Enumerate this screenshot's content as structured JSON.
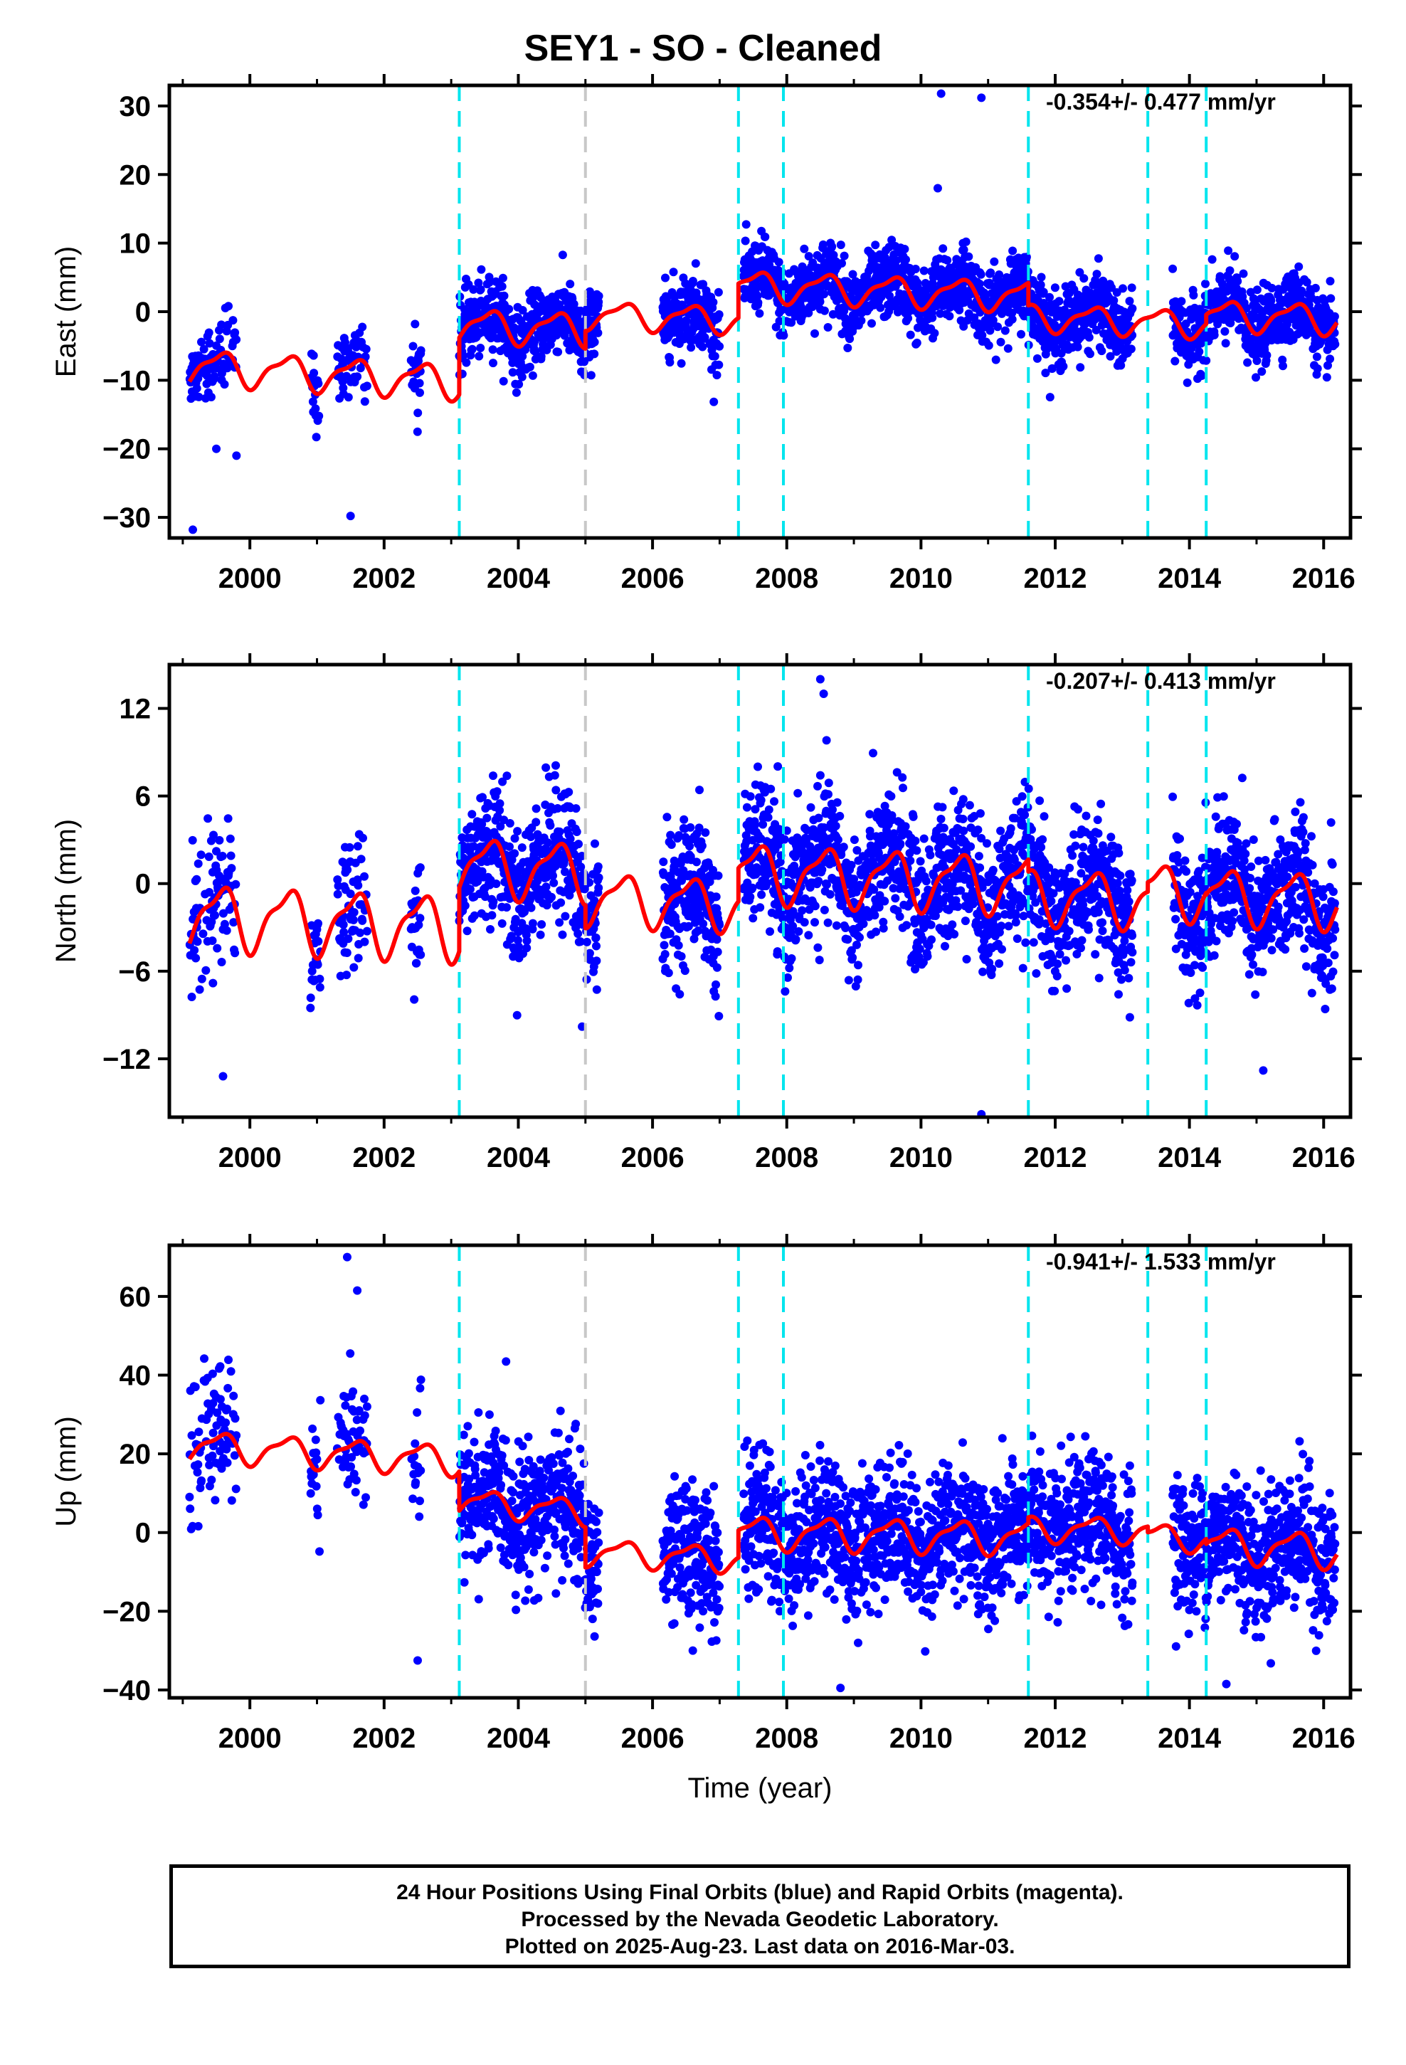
{
  "title": "SEY1  - SO - Cleaned",
  "footer": {
    "line1": "24 Hour Positions Using Final Orbits (blue) and Rapid Orbits (magenta).",
    "line2": "Processed by the Nevada Geodetic Laboratory.",
    "line3": "Plotted on 2025-Aug-23. Last data on 2016-Mar-03."
  },
  "colors": {
    "points": "#0000ff",
    "model": "#ff0000",
    "step_equipment": "#00e5ee",
    "step_other": "#c8c8c8"
  },
  "chart_data": [
    {
      "type": "scatter",
      "ylabel": "East (mm)",
      "xlabel": "",
      "xlim": [
        1998.8,
        2016.4
      ],
      "ylim": [
        -33,
        33
      ],
      "yticks": [
        -30,
        -20,
        -10,
        0,
        10,
        20,
        30
      ],
      "xticks": [
        2000,
        2002,
        2004,
        2006,
        2008,
        2010,
        2012,
        2014,
        2016
      ],
      "rate": "-0.354+/- 0.477 mm/yr",
      "steps_equipment": [
        2003.12,
        2007.28,
        2007.95,
        2011.6,
        2013.38,
        2014.25
      ],
      "steps_other": [
        2005.0
      ],
      "model": [
        {
          "segment": [
            1999.1,
            2003.12
          ],
          "offset": -8,
          "amplitude": 2.3,
          "trend": -0.55
        },
        {
          "segment": [
            2003.12,
            2005.0
          ],
          "offset": -2,
          "amplitude": 2.2,
          "trend": -0.3
        },
        {
          "segment": [
            2005.0,
            2007.28
          ],
          "offset": -0.5,
          "amplitude": 1.8,
          "trend": -0.3
        },
        {
          "segment": [
            2007.28,
            2011.6
          ],
          "offset": 3.8,
          "amplitude": 2.0,
          "trend": -0.35
        },
        {
          "segment": [
            2011.6,
            2013.38
          ],
          "offset": -0.8,
          "amplitude": 1.8,
          "trend": -0.4
        },
        {
          "segment": [
            2013.38,
            2014.25
          ],
          "offset": -1.5,
          "amplitude": 1.8,
          "trend": -0.4
        },
        {
          "segment": [
            2014.25,
            2016.2
          ],
          "offset": -0.5,
          "amplitude": 2.0,
          "trend": -0.3
        }
      ],
      "scatter_sd": 2.6,
      "outliers": [
        [
          1999.15,
          -31.8
        ],
        [
          2001.5,
          -29.8
        ],
        [
          2010.3,
          31.8
        ],
        [
          2010.9,
          31.2
        ],
        [
          2010.25,
          18.0
        ],
        [
          1999.5,
          -20
        ],
        [
          1999.8,
          -21
        ]
      ]
    },
    {
      "type": "scatter",
      "ylabel": "North (mm)",
      "xlabel": "",
      "xlim": [
        1998.8,
        2016.4
      ],
      "ylim": [
        -16,
        15
      ],
      "yticks": [
        -12,
        -6,
        0,
        6,
        12
      ],
      "xticks": [
        2000,
        2002,
        2004,
        2006,
        2008,
        2010,
        2012,
        2014,
        2016
      ],
      "rate": "-0.207+/- 0.413 mm/yr",
      "steps_equipment": [
        2003.12,
        2007.28,
        2007.95,
        2011.6,
        2013.38,
        2014.25
      ],
      "steps_other": [
        2005.0
      ],
      "model": [
        {
          "segment": [
            1999.1,
            2003.12
          ],
          "offset": -2.2,
          "amplitude": 2.0,
          "trend": -0.2
        },
        {
          "segment": [
            2003.12,
            2005.0
          ],
          "offset": 1.2,
          "amplitude": 1.8,
          "trend": -0.2
        },
        {
          "segment": [
            2005.0,
            2007.28
          ],
          "offset": -1.0,
          "amplitude": 1.6,
          "trend": -0.2
        },
        {
          "segment": [
            2007.28,
            2011.6
          ],
          "offset": 0.8,
          "amplitude": 1.8,
          "trend": -0.2
        },
        {
          "segment": [
            2011.6,
            2013.38
          ],
          "offset": -0.8,
          "amplitude": 1.7,
          "trend": -0.2
        },
        {
          "segment": [
            2013.38,
            2014.25
          ],
          "offset": -0.5,
          "amplitude": 1.7,
          "trend": -0.2
        },
        {
          "segment": [
            2014.25,
            2016.2
          ],
          "offset": -0.8,
          "amplitude": 1.7,
          "trend": -0.2
        }
      ],
      "scatter_sd": 2.3,
      "outliers": [
        [
          2008.5,
          14.0
        ],
        [
          2008.55,
          13.0
        ],
        [
          2010.9,
          -15.8
        ],
        [
          1999.6,
          -13.2
        ],
        [
          2004.95,
          -9.8
        ],
        [
          2015.1,
          -12.8
        ]
      ]
    },
    {
      "type": "scatter",
      "ylabel": "Up (mm)",
      "xlabel": "Time (year)",
      "xlim": [
        1998.8,
        2016.4
      ],
      "ylim": [
        -42,
        73
      ],
      "yticks": [
        -40,
        -20,
        0,
        20,
        40,
        60
      ],
      "xticks": [
        2000,
        2002,
        2004,
        2006,
        2008,
        2010,
        2012,
        2014,
        2016
      ],
      "rate": "-0.941+/- 1.533 mm/yr",
      "steps_equipment": [
        2003.12,
        2007.28,
        2007.95,
        2011.6,
        2013.38,
        2014.25
      ],
      "steps_other": [
        2005.0
      ],
      "model": [
        {
          "segment": [
            1999.1,
            2003.12
          ],
          "offset": 22,
          "amplitude": 3.5,
          "trend": -0.9
        },
        {
          "segment": [
            2003.12,
            2005.0
          ],
          "offset": 8,
          "amplitude": 3.0,
          "trend": -1.5
        },
        {
          "segment": [
            2005.0,
            2007.28
          ],
          "offset": -5,
          "amplitude": 3.0,
          "trend": -0.8
        },
        {
          "segment": [
            2007.28,
            2011.6
          ],
          "offset": 0,
          "amplitude": 3.8,
          "trend": -0.3
        },
        {
          "segment": [
            2011.6,
            2013.38
          ],
          "offset": 1,
          "amplitude": 3.0,
          "trend": -0.3
        },
        {
          "segment": [
            2013.38,
            2014.25
          ],
          "offset": -1,
          "amplitude": 3.0,
          "trend": -0.8
        },
        {
          "segment": [
            2014.25,
            2016.2
          ],
          "offset": -3,
          "amplitude": 4.0,
          "trend": -0.8
        }
      ],
      "scatter_sd": 8.5,
      "outliers": [
        [
          2001.45,
          70.0
        ],
        [
          2001.6,
          61.5
        ],
        [
          2002.5,
          -32.5
        ],
        [
          2008.8,
          -39.5
        ],
        [
          2014.55,
          -38.5
        ],
        [
          2006.6,
          -30.0
        ]
      ]
    }
  ]
}
